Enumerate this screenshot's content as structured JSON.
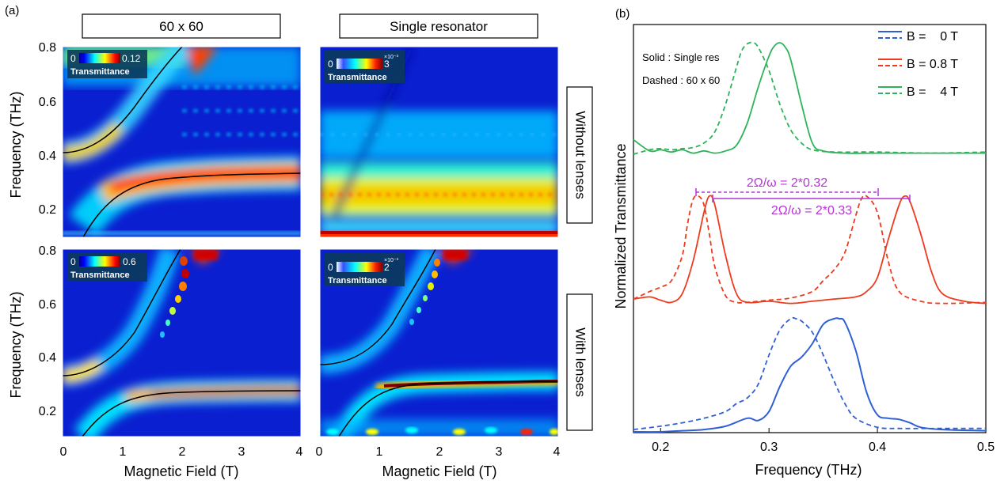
{
  "panel_a": {
    "label": "(a)",
    "col_titles": [
      "60 x 60",
      "Single resonator"
    ],
    "row_titles": [
      "Without lenses",
      "With lenses"
    ],
    "ylabel": "Frequency (THz)",
    "xlabel": "Magnetic Field (T)",
    "xticks": [
      "0",
      "1",
      "2",
      "3",
      "4"
    ],
    "yticks": [
      "0.2",
      "0.4",
      "0.6",
      "0.8"
    ],
    "colorbar_label": "Transmittance",
    "colorbars": [
      {
        "min": "0",
        "max": "0.12",
        "exp": ""
      },
      {
        "min": "0",
        "max": "3",
        "exp": "×10⁻³"
      },
      {
        "min": "0",
        "max": "0.6",
        "exp": ""
      },
      {
        "min": "0",
        "max": "2",
        "exp": "×10⁻³"
      }
    ]
  },
  "panel_b": {
    "label": "(b)",
    "annotation_solid": "Solid : Single res",
    "annotation_dashed": "Dashed : 60 x 60",
    "ylabel": "Normalized Transmittance",
    "xlabel": "Frequency (THz)",
    "xticks": [
      "0.2",
      "0.3",
      "0.4",
      "0.5"
    ],
    "legend": [
      {
        "label": "B =    0 T",
        "color": "#2f5fd6"
      },
      {
        "label": "B = 0.8 T",
        "color": "#ee3b1d"
      },
      {
        "label": "B =    4 T",
        "color": "#2fb35a"
      }
    ],
    "splitting_dashed": "2Ω/ω = 2*0.32",
    "splitting_solid": "2Ω/ω = 2*0.33",
    "annotation_color": "#b633d6"
  },
  "chart_data": [
    {
      "type": "heatmap",
      "title": "60 x 60",
      "row": "Without lenses",
      "xlabel": "Magnetic Field (T)",
      "ylabel": "Frequency (THz)",
      "xlim": [
        0,
        4
      ],
      "ylim": [
        0.1,
        0.8
      ],
      "colorbar_range": [
        0,
        0.12
      ],
      "cavity_frequency": 0.32,
      "uncoupled_frequency_at_0T": 0.41,
      "polaritons": "anticrossing, upper branch from 0.41 THz at 0 T, lower branch saturating near 0.32 THz"
    },
    {
      "type": "heatmap",
      "title": "Single resonator",
      "row": "Without lenses",
      "xlabel": "Magnetic Field (T)",
      "ylabel": "Frequency (THz)",
      "xlim": [
        0,
        4
      ],
      "ylim": [
        0.1,
        0.8
      ],
      "colorbar_range": [
        0,
        3
      ],
      "colorbar_exponent": "×10⁻³"
    },
    {
      "type": "heatmap",
      "title": "60 x 60",
      "row": "With lenses",
      "xlabel": "Magnetic Field (T)",
      "ylabel": "Frequency (THz)",
      "xlim": [
        0,
        4
      ],
      "ylim": [
        0.1,
        0.8
      ],
      "colorbar_range": [
        0,
        0.6
      ],
      "cavity_frequency": 0.27,
      "uncoupled_frequency_at_0T": 0.33
    },
    {
      "type": "heatmap",
      "title": "Single resonator",
      "row": "With lenses",
      "xlabel": "Magnetic Field (T)",
      "ylabel": "Frequency (THz)",
      "xlim": [
        0,
        4
      ],
      "ylim": [
        0.1,
        0.8
      ],
      "colorbar_range": [
        0,
        2
      ],
      "colorbar_exponent": "×10⁻³",
      "cavity_frequency": 0.3,
      "uncoupled_frequency_at_0T": 0.37
    },
    {
      "type": "line",
      "xlabel": "Frequency (THz)",
      "ylabel": "Normalized Transmittance",
      "xlim": [
        0.175,
        0.5
      ],
      "series": [
        {
          "name": "B =    4 T",
          "style": "solid",
          "offset": 2.0,
          "x": [
            0.175,
            0.19,
            0.2,
            0.21,
            0.22,
            0.23,
            0.24,
            0.25,
            0.26,
            0.27,
            0.28,
            0.29,
            0.3,
            0.305,
            0.31,
            0.315,
            0.32,
            0.33,
            0.34,
            0.35,
            0.37,
            0.4,
            0.45,
            0.5
          ],
          "y": [
            0.13,
            0.03,
            0.04,
            0.02,
            0.04,
            0.01,
            0.03,
            0.01,
            0.03,
            0.08,
            0.28,
            0.6,
            0.88,
            0.97,
            1.0,
            0.96,
            0.85,
            0.45,
            0.1,
            0.03,
            0.01,
            0.01,
            0.01,
            0.01
          ]
        },
        {
          "name": "B =    4 T",
          "style": "dashed",
          "offset": 2.0,
          "x": [
            0.175,
            0.19,
            0.2,
            0.21,
            0.22,
            0.23,
            0.24,
            0.25,
            0.26,
            0.27,
            0.275,
            0.28,
            0.285,
            0.29,
            0.3,
            0.31,
            0.32,
            0.33,
            0.34,
            0.36,
            0.4,
            0.45,
            0.5
          ],
          "y": [
            0.0,
            0.04,
            0.05,
            0.04,
            0.05,
            0.06,
            0.1,
            0.2,
            0.45,
            0.78,
            0.93,
            0.99,
            1.0,
            0.96,
            0.75,
            0.45,
            0.22,
            0.1,
            0.04,
            0.02,
            0.02,
            0.01,
            0.02
          ]
        },
        {
          "name": "B = 0.8 T",
          "style": "solid",
          "offset": 1.0,
          "x": [
            0.175,
            0.19,
            0.2,
            0.21,
            0.22,
            0.23,
            0.24,
            0.245,
            0.25,
            0.26,
            0.27,
            0.28,
            0.3,
            0.32,
            0.34,
            0.36,
            0.38,
            0.39,
            0.4,
            0.41,
            0.42,
            0.425,
            0.43,
            0.44,
            0.45,
            0.46,
            0.48,
            0.5
          ],
          "y": [
            0.05,
            0.07,
            0.04,
            0.02,
            0.1,
            0.4,
            0.85,
            1.0,
            0.92,
            0.45,
            0.1,
            0.02,
            0.03,
            0.01,
            0.03,
            0.05,
            0.07,
            0.12,
            0.25,
            0.6,
            0.92,
            1.0,
            0.95,
            0.65,
            0.3,
            0.1,
            0.03,
            0.01
          ]
        },
        {
          "name": "B = 0.8 T",
          "style": "dashed",
          "offset": 1.0,
          "x": [
            0.175,
            0.19,
            0.2,
            0.21,
            0.22,
            0.225,
            0.23,
            0.235,
            0.24,
            0.245,
            0.25,
            0.26,
            0.27,
            0.28,
            0.3,
            0.32,
            0.34,
            0.35,
            0.36,
            0.37,
            0.38,
            0.385,
            0.39,
            0.4,
            0.41,
            0.42,
            0.44,
            0.46,
            0.5
          ],
          "y": [
            0.05,
            0.12,
            0.16,
            0.22,
            0.45,
            0.75,
            0.97,
            1.0,
            0.92,
            0.65,
            0.35,
            0.08,
            0.02,
            0.02,
            0.04,
            0.06,
            0.12,
            0.22,
            0.32,
            0.48,
            0.82,
            0.97,
            1.0,
            0.85,
            0.4,
            0.12,
            0.03,
            0.01,
            0.02
          ]
        },
        {
          "name": "B =    0 T",
          "style": "solid",
          "offset": 0.0,
          "x": [
            0.175,
            0.2,
            0.22,
            0.24,
            0.26,
            0.28,
            0.29,
            0.3,
            0.31,
            0.32,
            0.33,
            0.34,
            0.35,
            0.36,
            0.365,
            0.37,
            0.38,
            0.39,
            0.4,
            0.41,
            0.42,
            0.43,
            0.44,
            0.46,
            0.5
          ],
          "y": [
            0.0,
            0.0,
            0.01,
            0.02,
            0.05,
            0.12,
            0.1,
            0.18,
            0.4,
            0.58,
            0.66,
            0.78,
            0.95,
            1.0,
            1.0,
            0.97,
            0.72,
            0.35,
            0.15,
            0.12,
            0.11,
            0.08,
            0.04,
            0.02,
            0.01
          ]
        },
        {
          "name": "B =    0 T",
          "style": "dashed",
          "offset": 0.0,
          "x": [
            0.175,
            0.2,
            0.22,
            0.24,
            0.26,
            0.27,
            0.28,
            0.29,
            0.3,
            0.31,
            0.32,
            0.325,
            0.33,
            0.34,
            0.35,
            0.36,
            0.37,
            0.38,
            0.4,
            0.42,
            0.46,
            0.5
          ],
          "y": [
            0.02,
            0.05,
            0.08,
            0.12,
            0.18,
            0.25,
            0.3,
            0.42,
            0.68,
            0.9,
            1.0,
            1.0,
            0.98,
            0.88,
            0.68,
            0.45,
            0.25,
            0.12,
            0.04,
            0.03,
            0.03,
            0.03
          ]
        }
      ],
      "annotations": [
        "Solid : Single res",
        "Dashed : 60 x 60",
        "2Ω/ω = 2*0.32",
        "2Ω/ω = 2*0.33"
      ]
    }
  ]
}
